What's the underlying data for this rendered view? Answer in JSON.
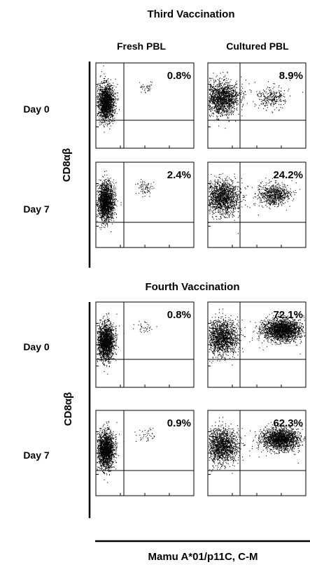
{
  "figure": {
    "sections": [
      {
        "title": "Third Vaccination",
        "ylabel": "CD8αβ",
        "columns": [
          "Fresh PBL",
          "Cultured PBL"
        ],
        "rows": [
          "Day 0",
          "Day 7"
        ]
      },
      {
        "title": "Fourth Vaccination",
        "ylabel": "CD8αβ",
        "columns": [],
        "rows": [
          "Day 0",
          "Day 7"
        ]
      }
    ],
    "xlabel": "Mamu A*01/p11C, C-M",
    "colors": {
      "ink": "#000000",
      "background": "#ffffff"
    }
  },
  "chart_data": [
    {
      "type": "scatter",
      "section": "Third Vaccination",
      "column": "Fresh PBL",
      "row": "Day 0",
      "percent_label": "0.8%",
      "percent": 0.8,
      "xlabel": "Mamu A*01/p11C, C-M",
      "ylabel": "CD8αβ"
    },
    {
      "type": "scatter",
      "section": "Third Vaccination",
      "column": "Cultured PBL",
      "row": "Day 0",
      "percent_label": "8.9%",
      "percent": 8.9,
      "xlabel": "Mamu A*01/p11C, C-M",
      "ylabel": "CD8αβ"
    },
    {
      "type": "scatter",
      "section": "Third Vaccination",
      "column": "Fresh PBL",
      "row": "Day 7",
      "percent_label": "2.4%",
      "percent": 2.4,
      "xlabel": "Mamu A*01/p11C, C-M",
      "ylabel": "CD8αβ"
    },
    {
      "type": "scatter",
      "section": "Third Vaccination",
      "column": "Cultured PBL",
      "row": "Day 7",
      "percent_label": "24.2%",
      "percent": 24.2,
      "xlabel": "Mamu A*01/p11C, C-M",
      "ylabel": "CD8αβ"
    },
    {
      "type": "scatter",
      "section": "Fourth Vaccination",
      "column": "Fresh PBL",
      "row": "Day 0",
      "percent_label": "0.8%",
      "percent": 0.8,
      "xlabel": "Mamu A*01/p11C, C-M",
      "ylabel": "CD8αβ"
    },
    {
      "type": "scatter",
      "section": "Fourth Vaccination",
      "column": "Cultured PBL",
      "row": "Day 0",
      "percent_label": "72.1%",
      "percent": 72.1,
      "xlabel": "Mamu A*01/p11C, C-M",
      "ylabel": "CD8αβ"
    },
    {
      "type": "scatter",
      "section": "Fourth Vaccination",
      "column": "Fresh PBL",
      "row": "Day 7",
      "percent_label": "0.9%",
      "percent": 0.9,
      "xlabel": "Mamu A*01/p11C, C-M",
      "ylabel": "CD8αβ"
    },
    {
      "type": "scatter",
      "section": "Fourth Vaccination",
      "column": "Cultured PBL",
      "row": "Day 7",
      "percent_label": "62.3%",
      "percent": 62.3,
      "xlabel": "Mamu A*01/p11C, C-M",
      "ylabel": "CD8αβ"
    }
  ]
}
